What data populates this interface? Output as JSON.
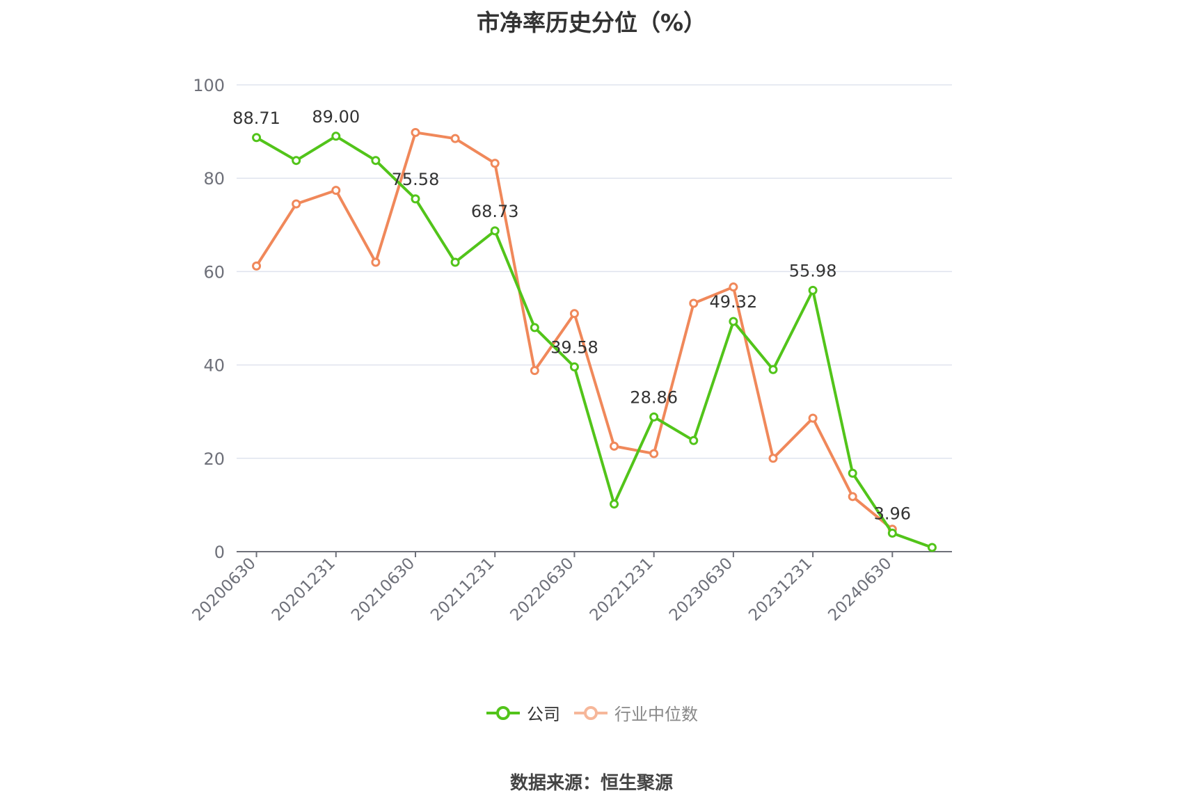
{
  "title": "市净率历史分位（%）",
  "source": "数据来源：恒生聚源",
  "legend": [
    {
      "name": "公司",
      "color": "#52c41a"
    },
    {
      "name": "行业中位数",
      "color": "#f0885a",
      "faded": "#f6b79a"
    }
  ],
  "chart_data": {
    "type": "line",
    "ylim": [
      0,
      100
    ],
    "yticks": [
      0,
      20,
      40,
      60,
      80,
      100
    ],
    "x": [
      "20200630",
      "20200930",
      "20201231",
      "20210331",
      "20210630",
      "20210930",
      "20211231",
      "20220331",
      "20220630",
      "20220930",
      "20221231",
      "20230331",
      "20230630",
      "20230930",
      "20231231",
      "20240331",
      "20240630",
      "20240930"
    ],
    "xtick_labels": [
      "20200630",
      "20201231",
      "20210630",
      "20211231",
      "20220630",
      "20221231",
      "20230630",
      "20231231",
      "20240630"
    ],
    "series": [
      {
        "name": "公司",
        "color": "#52c41a",
        "values": [
          88.71,
          83.8,
          89.0,
          83.8,
          75.58,
          62.0,
          68.73,
          48.0,
          39.58,
          10.2,
          28.86,
          23.8,
          49.32,
          39.0,
          55.98,
          16.8,
          3.96,
          0.9
        ],
        "labels": [
          "88.71",
          null,
          "89.00",
          null,
          "75.58",
          null,
          "68.73",
          null,
          "39.58",
          null,
          "28.86",
          null,
          "49.32",
          null,
          "55.98",
          null,
          "3.96",
          null
        ]
      },
      {
        "name": "行业中位数",
        "color": "#f0885a",
        "values": [
          61.2,
          74.5,
          77.4,
          62.0,
          89.8,
          88.5,
          83.2,
          38.8,
          51.0,
          22.6,
          21.0,
          53.2,
          56.7,
          20.0,
          28.6,
          11.8,
          4.8,
          null
        ]
      }
    ]
  }
}
